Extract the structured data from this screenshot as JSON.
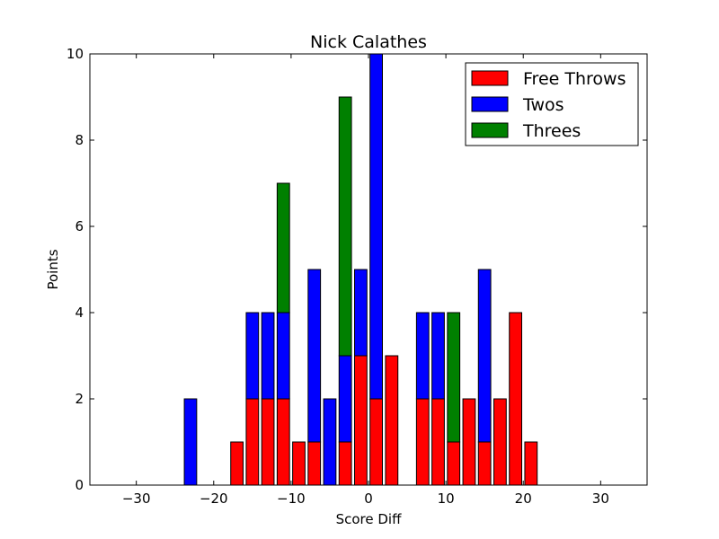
{
  "chart_data": {
    "type": "bar",
    "stacked": true,
    "title": "Nick Calathes",
    "xlabel": "Score Diff",
    "ylabel": "Points",
    "xlim": [
      -36,
      36
    ],
    "ylim": [
      0,
      10
    ],
    "xticks": [
      -30,
      -20,
      -10,
      0,
      10,
      20,
      30
    ],
    "yticks": [
      0,
      2,
      4,
      6,
      8,
      10
    ],
    "xtick_labels": [
      "−30",
      "−20",
      "−10",
      "0",
      "10",
      "20",
      "30"
    ],
    "ytick_labels": [
      "0",
      "2",
      "4",
      "6",
      "8",
      "10"
    ],
    "bar_width": 1.6,
    "x": [
      -35,
      -33,
      -31,
      -29,
      -27,
      -25,
      -23,
      -21,
      -19,
      -17,
      -15,
      -13,
      -11,
      -9,
      -7,
      -5,
      -3,
      -1,
      1,
      3,
      5,
      7,
      9,
      11,
      13,
      15,
      17,
      19,
      21,
      23,
      25,
      27,
      29,
      31,
      33,
      35
    ],
    "series": [
      {
        "name": "Free Throws",
        "color": "#ff0000",
        "values": [
          0,
          0,
          0,
          0,
          0,
          0,
          0,
          0,
          0,
          1,
          2,
          2,
          2,
          1,
          1,
          0,
          1,
          3,
          2,
          3,
          0,
          2,
          2,
          1,
          2,
          1,
          2,
          4,
          1,
          0,
          0,
          0,
          0,
          0,
          0,
          0
        ]
      },
      {
        "name": "Twos",
        "color": "#0000ff",
        "values": [
          0,
          0,
          0,
          0,
          0,
          0,
          2,
          0,
          0,
          0,
          2,
          2,
          2,
          0,
          4,
          2,
          2,
          2,
          8,
          0,
          0,
          2,
          2,
          0,
          0,
          4,
          0,
          0,
          0,
          0,
          0,
          0,
          0,
          0,
          0,
          0
        ]
      },
      {
        "name": "Threes",
        "color": "#008000",
        "values": [
          0,
          0,
          0,
          0,
          0,
          0,
          0,
          0,
          0,
          0,
          0,
          0,
          3,
          0,
          0,
          0,
          6,
          0,
          0,
          0,
          0,
          0,
          0,
          3,
          0,
          0,
          0,
          0,
          0,
          0,
          0,
          0,
          0,
          0,
          0,
          0
        ]
      }
    ],
    "grid": false,
    "legend_position": "top-right"
  }
}
